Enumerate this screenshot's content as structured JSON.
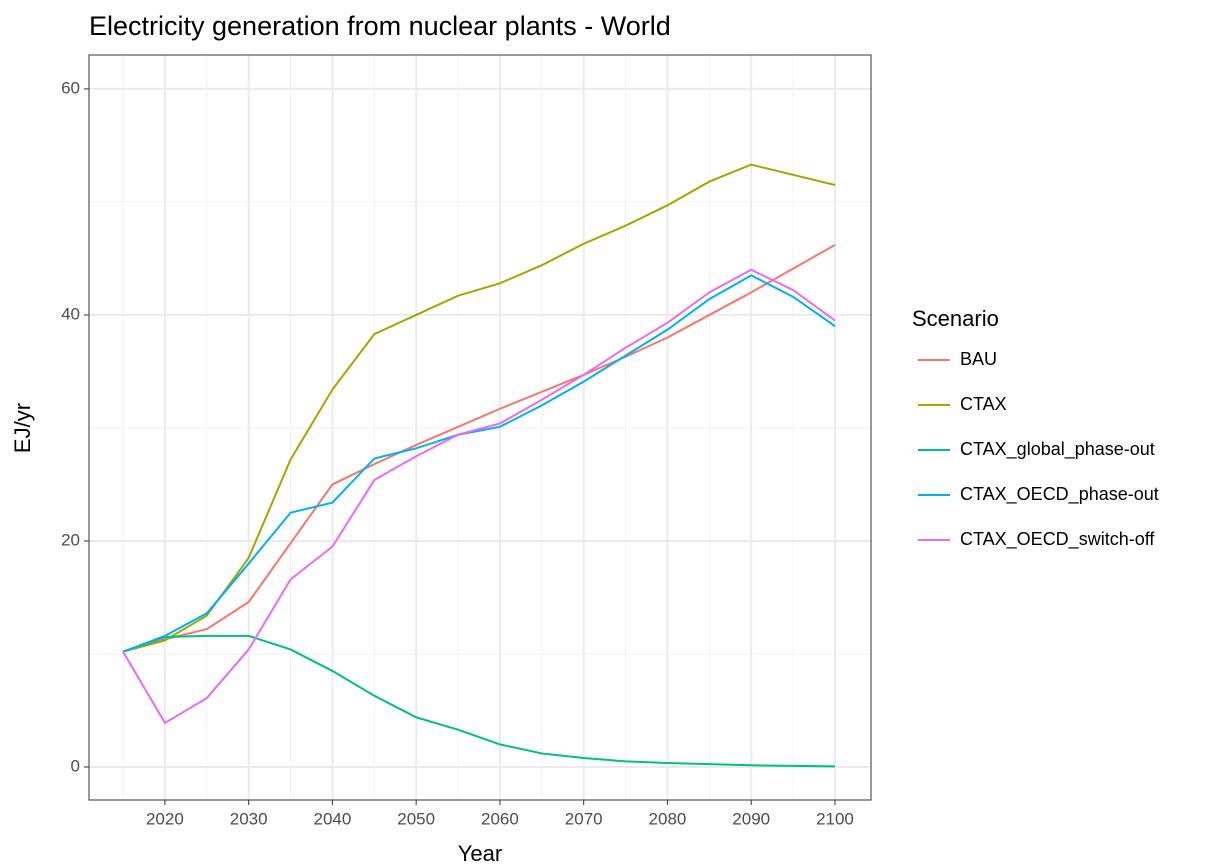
{
  "chart_data": {
    "type": "line",
    "title": "Electricity generation from nuclear plants - World",
    "x_label": "Year",
    "y_label": "EJ/yr",
    "legend_title": "Scenario",
    "legend_position": "right",
    "grid": true,
    "minor_grid": true,
    "x": [
      2015,
      2020,
      2025,
      2030,
      2035,
      2040,
      2045,
      2050,
      2055,
      2060,
      2065,
      2070,
      2075,
      2080,
      2085,
      2090,
      2095,
      2100
    ],
    "xlim": [
      2010.94,
      2104.3
    ],
    "xticks": [
      2020,
      2030,
      2040,
      2050,
      2060,
      2070,
      2080,
      2090,
      2100
    ],
    "ylim": [
      -2.92,
      63.0
    ],
    "yticks": [
      0,
      20,
      40,
      60
    ],
    "series": [
      {
        "name": "BAU",
        "color": "#F8766D",
        "values": [
          10.2,
          11.3,
          12.2,
          14.6,
          19.8,
          25.0,
          26.8,
          28.5,
          30.1,
          31.7,
          33.2,
          34.7,
          36.3,
          38.0,
          40.0,
          42.0,
          44.1,
          46.2
        ]
      },
      {
        "name": "CTAX",
        "color": "#A3A500",
        "values": [
          10.2,
          11.2,
          13.4,
          18.5,
          27.2,
          33.4,
          38.3,
          40.0,
          41.7,
          42.8,
          44.4,
          46.3,
          47.9,
          49.7,
          51.8,
          53.3,
          52.4,
          51.5
        ]
      },
      {
        "name": "CTAX_global_phase-out",
        "color": "#00BF7D",
        "values": [
          10.2,
          11.5,
          11.6,
          11.6,
          10.4,
          8.5,
          6.3,
          4.4,
          3.3,
          2.0,
          1.2,
          0.8,
          0.5,
          0.35,
          0.25,
          0.15,
          0.1,
          0.05
        ]
      },
      {
        "name": "CTAX_OECD_phase-out",
        "color": "#00B0F6",
        "values": [
          10.2,
          11.6,
          13.6,
          18.0,
          22.5,
          23.4,
          27.3,
          28.2,
          29.4,
          30.1,
          32.0,
          34.1,
          36.4,
          38.7,
          41.4,
          43.5,
          41.6,
          39.0
        ]
      },
      {
        "name": "CTAX_OECD_switch-off",
        "color": "#E76BF3",
        "values": [
          10.2,
          3.9,
          6.1,
          10.4,
          16.6,
          19.5,
          25.4,
          27.5,
          29.4,
          30.4,
          32.5,
          34.7,
          37.1,
          39.3,
          42.0,
          44.0,
          42.2,
          39.5
        ]
      }
    ]
  }
}
